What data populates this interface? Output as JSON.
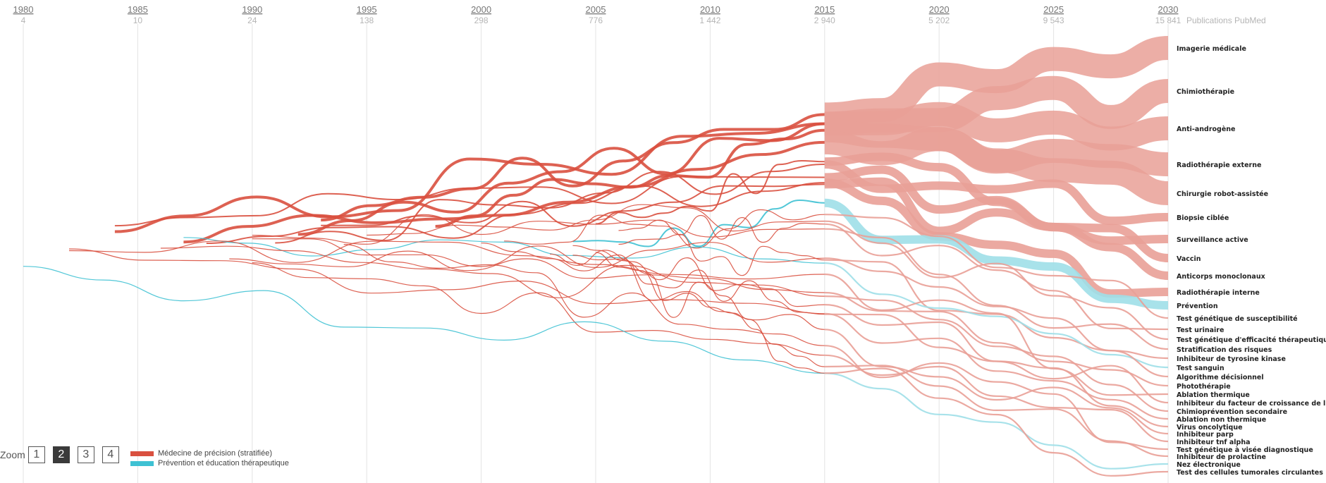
{
  "chart_data": {
    "type": "line",
    "title": "",
    "unit_label": "Publications PubMed",
    "x_axis": [
      {
        "year": "1980",
        "count": "4"
      },
      {
        "year": "1985",
        "count": "10"
      },
      {
        "year": "1990",
        "count": "24"
      },
      {
        "year": "1995",
        "count": "138"
      },
      {
        "year": "2000",
        "count": "298"
      },
      {
        "year": "2005",
        "count": "776"
      },
      {
        "year": "2010",
        "count": "1 442"
      },
      {
        "year": "2015",
        "count": "2 940"
      },
      {
        "year": "2020",
        "count": "5 202"
      },
      {
        "year": "2025",
        "count": "9 543"
      },
      {
        "year": "2030",
        "count": "15 841"
      }
    ],
    "xlim": [
      1980,
      2030
    ],
    "projection_start": 2015,
    "grid": "vertical lines at each 5 years",
    "series": [
      {
        "name": "Imagerie médicale",
        "group": "precision",
        "rank_2030": 1,
        "weight": "large"
      },
      {
        "name": "Chimiothérapie",
        "group": "precision",
        "rank_2030": 2,
        "weight": "large"
      },
      {
        "name": "Anti-androgène",
        "group": "precision",
        "rank_2030": 3,
        "weight": "large"
      },
      {
        "name": "Radiothérapie externe",
        "group": "precision",
        "rank_2030": 4,
        "weight": "large"
      },
      {
        "name": "Chirurgie robot-assistée",
        "group": "precision",
        "rank_2030": 5,
        "weight": "large"
      },
      {
        "name": "Biopsie ciblée",
        "group": "precision",
        "rank_2030": 6,
        "weight": "medium"
      },
      {
        "name": "Surveillance active",
        "group": "precision",
        "rank_2030": 7,
        "weight": "medium"
      },
      {
        "name": "Vaccin",
        "group": "precision",
        "rank_2030": 8,
        "weight": "medium"
      },
      {
        "name": "Anticorps monoclonaux",
        "group": "precision",
        "rank_2030": 9,
        "weight": "medium"
      },
      {
        "name": "Radiothérapie interne",
        "group": "precision",
        "rank_2030": 10,
        "weight": "medium"
      },
      {
        "name": "Prévention",
        "group": "prevention",
        "rank_2030": 11,
        "weight": "medium"
      },
      {
        "name": "Test génétique de susceptibilité",
        "group": "precision",
        "rank_2030": 12,
        "weight": "small"
      },
      {
        "name": "Test urinaire",
        "group": "precision",
        "rank_2030": 13,
        "weight": "small"
      },
      {
        "name": "Test génétique d'efficacité thérapeutique",
        "group": "precision",
        "rank_2030": 14,
        "weight": "small"
      },
      {
        "name": "Stratification des risques",
        "group": "precision",
        "rank_2030": 15,
        "weight": "small"
      },
      {
        "name": "Inhibiteur de tyrosine kinase",
        "group": "precision",
        "rank_2030": 16,
        "weight": "small"
      },
      {
        "name": "Test sanguin",
        "group": "prevention",
        "rank_2030": 17,
        "weight": "small"
      },
      {
        "name": "Algorithme décisionnel",
        "group": "precision",
        "rank_2030": 18,
        "weight": "small"
      },
      {
        "name": "Photothérapie",
        "group": "precision",
        "rank_2030": 19,
        "weight": "small"
      },
      {
        "name": "Ablation thermique",
        "group": "precision",
        "rank_2030": 20,
        "weight": "small"
      },
      {
        "name": "Inhibiteur du facteur de croissance de l'insuline",
        "group": "precision",
        "rank_2030": 21,
        "weight": "small"
      },
      {
        "name": "Chimioprévention secondaire",
        "group": "precision",
        "rank_2030": 22,
        "weight": "small"
      },
      {
        "name": "Ablation non thermique",
        "group": "precision",
        "rank_2030": 23,
        "weight": "small"
      },
      {
        "name": "Virus oncolytique",
        "group": "precision",
        "rank_2030": 24,
        "weight": "small"
      },
      {
        "name": "Inhibiteur parp",
        "group": "precision",
        "rank_2030": 25,
        "weight": "small"
      },
      {
        "name": "Inhibiteur tnf alpha",
        "group": "precision",
        "rank_2030": 26,
        "weight": "small"
      },
      {
        "name": "Test génétique à visée diagnostique",
        "group": "precision",
        "rank_2030": 27,
        "weight": "small"
      },
      {
        "name": "Inhibiteur de prolactine",
        "group": "precision",
        "rank_2030": 28,
        "weight": "small"
      },
      {
        "name": "Nez électronique",
        "group": "prevention",
        "rank_2030": 29,
        "weight": "small"
      },
      {
        "name": "Test des cellules tumorales circulantes",
        "group": "precision",
        "rank_2030": 30,
        "weight": "small"
      }
    ]
  },
  "colors": {
    "precision": "#d9503f",
    "prevention": "#3ec1d3",
    "precision_projection": "#e9a097",
    "prevention_projection": "#9fdfe8",
    "gridline": "#e3e3e3",
    "dark_line": "#3a4a4a"
  },
  "legend": {
    "precision": "Médecine de précision (stratifiée)",
    "prevention": "Prévention et éducation thérapeutique"
  },
  "zoom": {
    "label": "Zoom",
    "options": [
      "1",
      "2",
      "3",
      "4"
    ],
    "selected": "2"
  }
}
